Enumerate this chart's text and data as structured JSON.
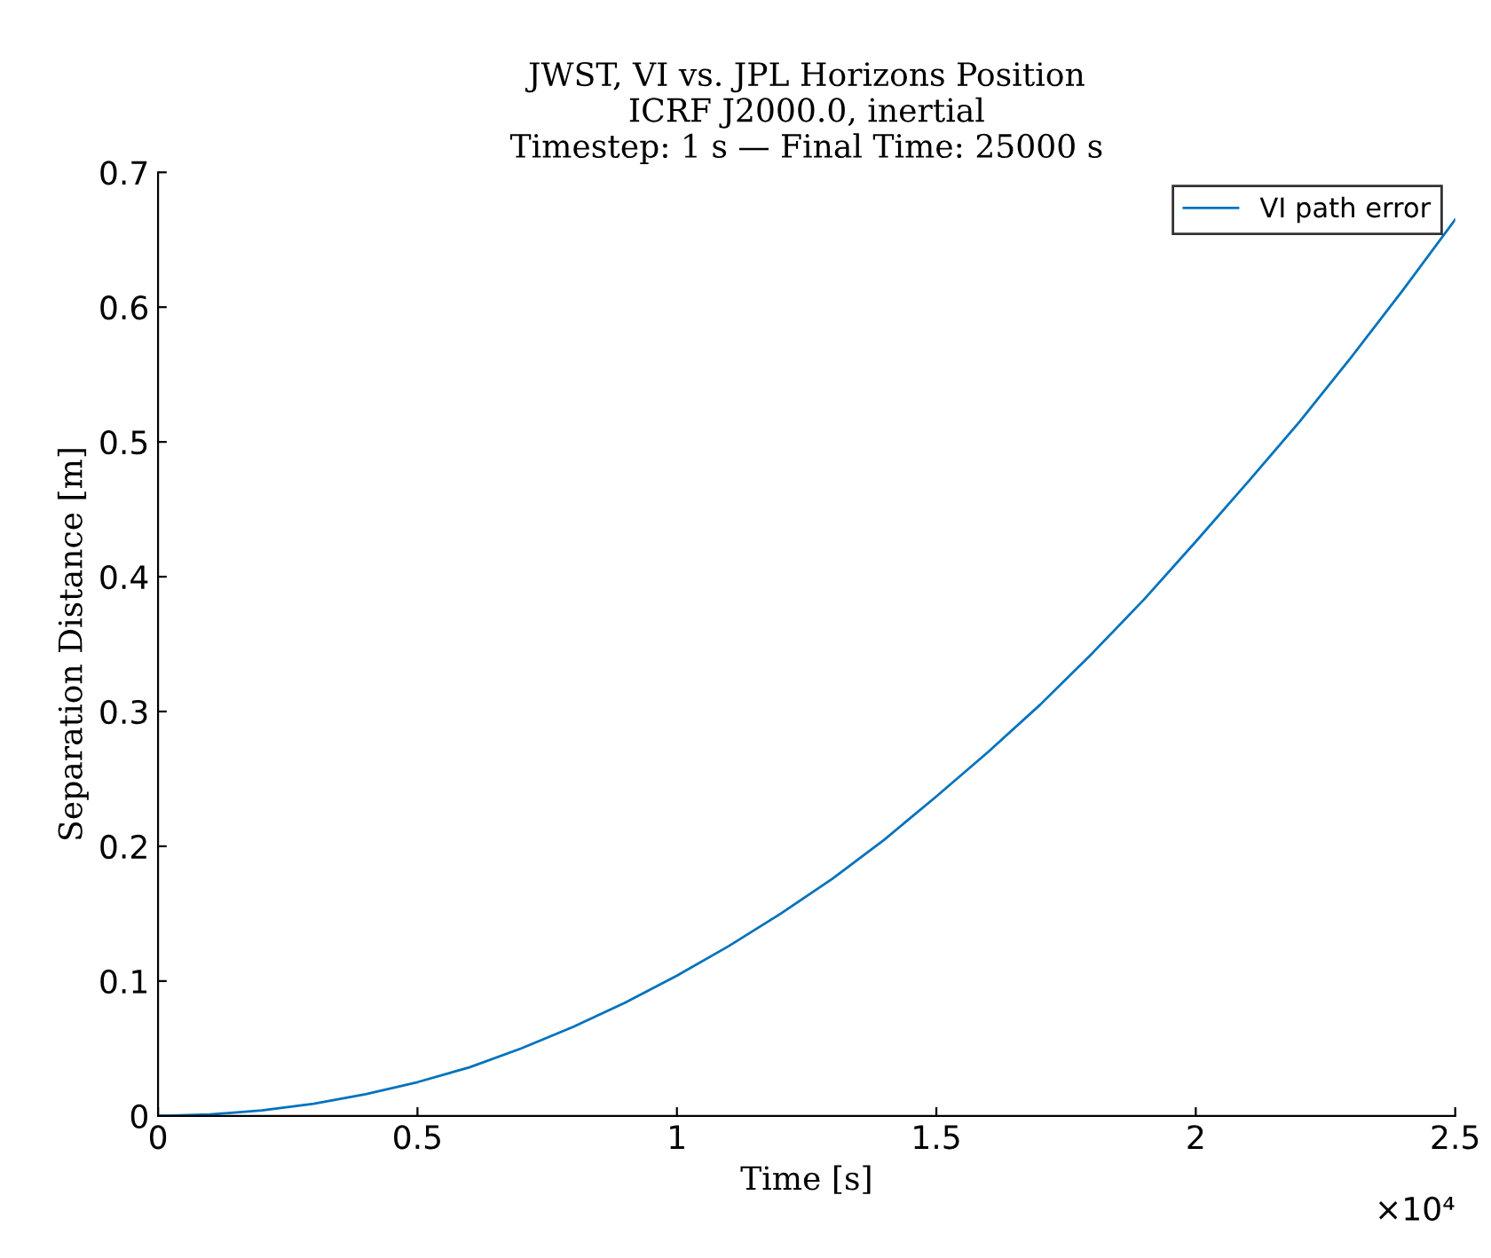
{
  "chart_data": {
    "type": "line",
    "title": "JWST, VI vs. JPL Horizons Position\nICRF J2000.0, inertial\nTimestep: 1 s — Final Time: 25000 s",
    "xlabel": "Time [s]",
    "ylabel": "Separation Distance [m]",
    "x": [
      0,
      0.1,
      0.2,
      0.3,
      0.4,
      0.5,
      0.6,
      0.7,
      0.8,
      0.9,
      1,
      1.1,
      1.2,
      1.3,
      1.4,
      1.5,
      1.6,
      1.7,
      1.8,
      1.9,
      2,
      2.1,
      2.2,
      2.3,
      2.4,
      2.5
    ],
    "series": [
      {
        "name": "VI path error",
        "color": "#0072bd",
        "values": [
          0,
          0.001,
          0.004,
          0.009,
          0.016,
          0.025,
          0.036,
          0.05,
          0.066,
          0.084,
          0.104,
          0.126,
          0.15,
          0.176,
          0.205,
          0.237,
          0.27,
          0.305,
          0.343,
          0.383,
          0.426,
          0.47,
          0.515,
          0.563,
          0.613,
          0.665
        ]
      }
    ],
    "xlim": [
      0,
      2.5
    ],
    "xticks": [
      0,
      0.5,
      1,
      1.5,
      2,
      2.5
    ],
    "ylim": [
      0,
      0.7
    ],
    "yticks": [
      0,
      0.1,
      0.2,
      0.3,
      0.4,
      0.5,
      0.6,
      0.7
    ],
    "annotations": [
      "×10⁴"
    ],
    "legend": "top right",
    "grid": false,
    "marker": "none",
    "line_style": "solid"
  }
}
